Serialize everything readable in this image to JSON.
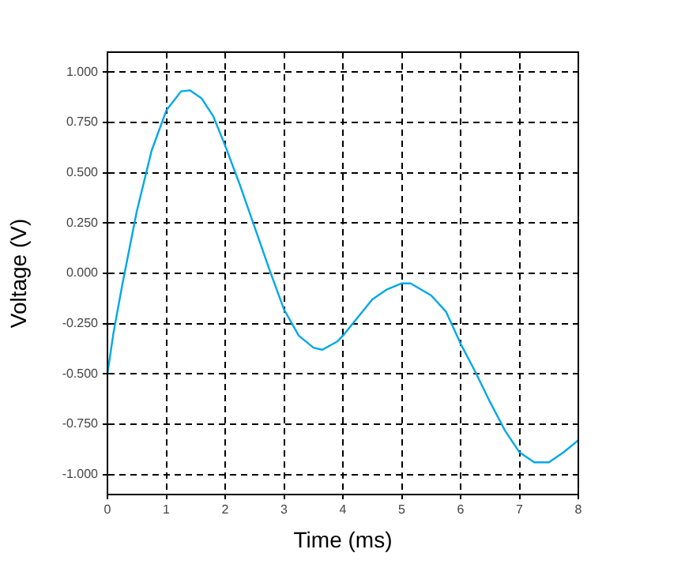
{
  "chart_data": {
    "type": "line",
    "xlabel": "Time (ms)",
    "ylabel": "Voltage (V)",
    "x": [
      0,
      0.1,
      0.25,
      0.5,
      0.75,
      1,
      1.25,
      1.4,
      1.6,
      1.8,
      2,
      2.25,
      2.5,
      2.75,
      3,
      3.25,
      3.5,
      3.65,
      3.9,
      4,
      4.25,
      4.5,
      4.75,
      5,
      5.15,
      5.5,
      5.75,
      6,
      6.25,
      6.5,
      6.75,
      7,
      7.25,
      7.5,
      7.75,
      8
    ],
    "series": [
      {
        "color": "#00a8e8",
        "values": [
          -0.5,
          -0.3,
          -0.06,
          0.31,
          0.61,
          0.81,
          0.905,
          0.91,
          0.87,
          0.78,
          0.635,
          0.44,
          0.23,
          0.02,
          -0.18,
          -0.31,
          -0.37,
          -0.38,
          -0.34,
          -0.31,
          -0.22,
          -0.13,
          -0.08,
          -0.05,
          -0.05,
          -0.11,
          -0.19,
          -0.35,
          -0.49,
          -0.64,
          -0.78,
          -0.89,
          -0.94,
          -0.94,
          -0.89,
          -0.83
        ]
      }
    ],
    "xlim": [
      0,
      8
    ],
    "xticks": [
      0,
      1,
      2,
      3,
      4,
      5,
      6,
      7,
      8
    ],
    "ylim": [
      -1.1,
      1.1
    ],
    "yticks": [
      {
        "value": -1,
        "label": "-1.000"
      },
      {
        "value": -0.75,
        "label": "-0.750"
      },
      {
        "value": -0.5,
        "label": "-0.500"
      },
      {
        "value": -0.25,
        "label": "-0.250"
      },
      {
        "value": 0,
        "label": "0.000"
      },
      {
        "value": 0.25,
        "label": "0.250"
      },
      {
        "value": 0.5,
        "label": "0.500"
      },
      {
        "value": 0.75,
        "label": "0.750"
      },
      {
        "value": 1,
        "label": "1.000"
      }
    ],
    "grid": true,
    "marker": "none",
    "line_style": "solid"
  }
}
